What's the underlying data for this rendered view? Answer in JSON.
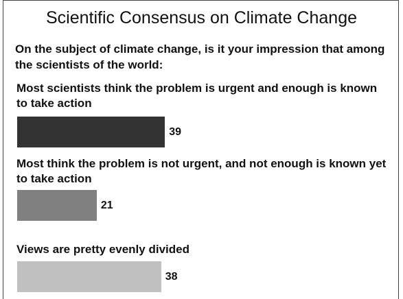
{
  "chart_data": {
    "type": "bar",
    "title": "Scientific Consensus on Climate Change",
    "subtitle": "On the subject of climate change, is it your impression that among the scientists of the world:",
    "categories": [
      "Most scientists think the problem is urgent and enough is known to take action",
      "Most think the problem is not urgent, and not enough is known yet to take action",
      "Views are pretty evenly divided"
    ],
    "values": [
      39,
      21,
      38
    ],
    "colors": [
      "#333333",
      "#808080",
      "#c0c0c0"
    ]
  }
}
